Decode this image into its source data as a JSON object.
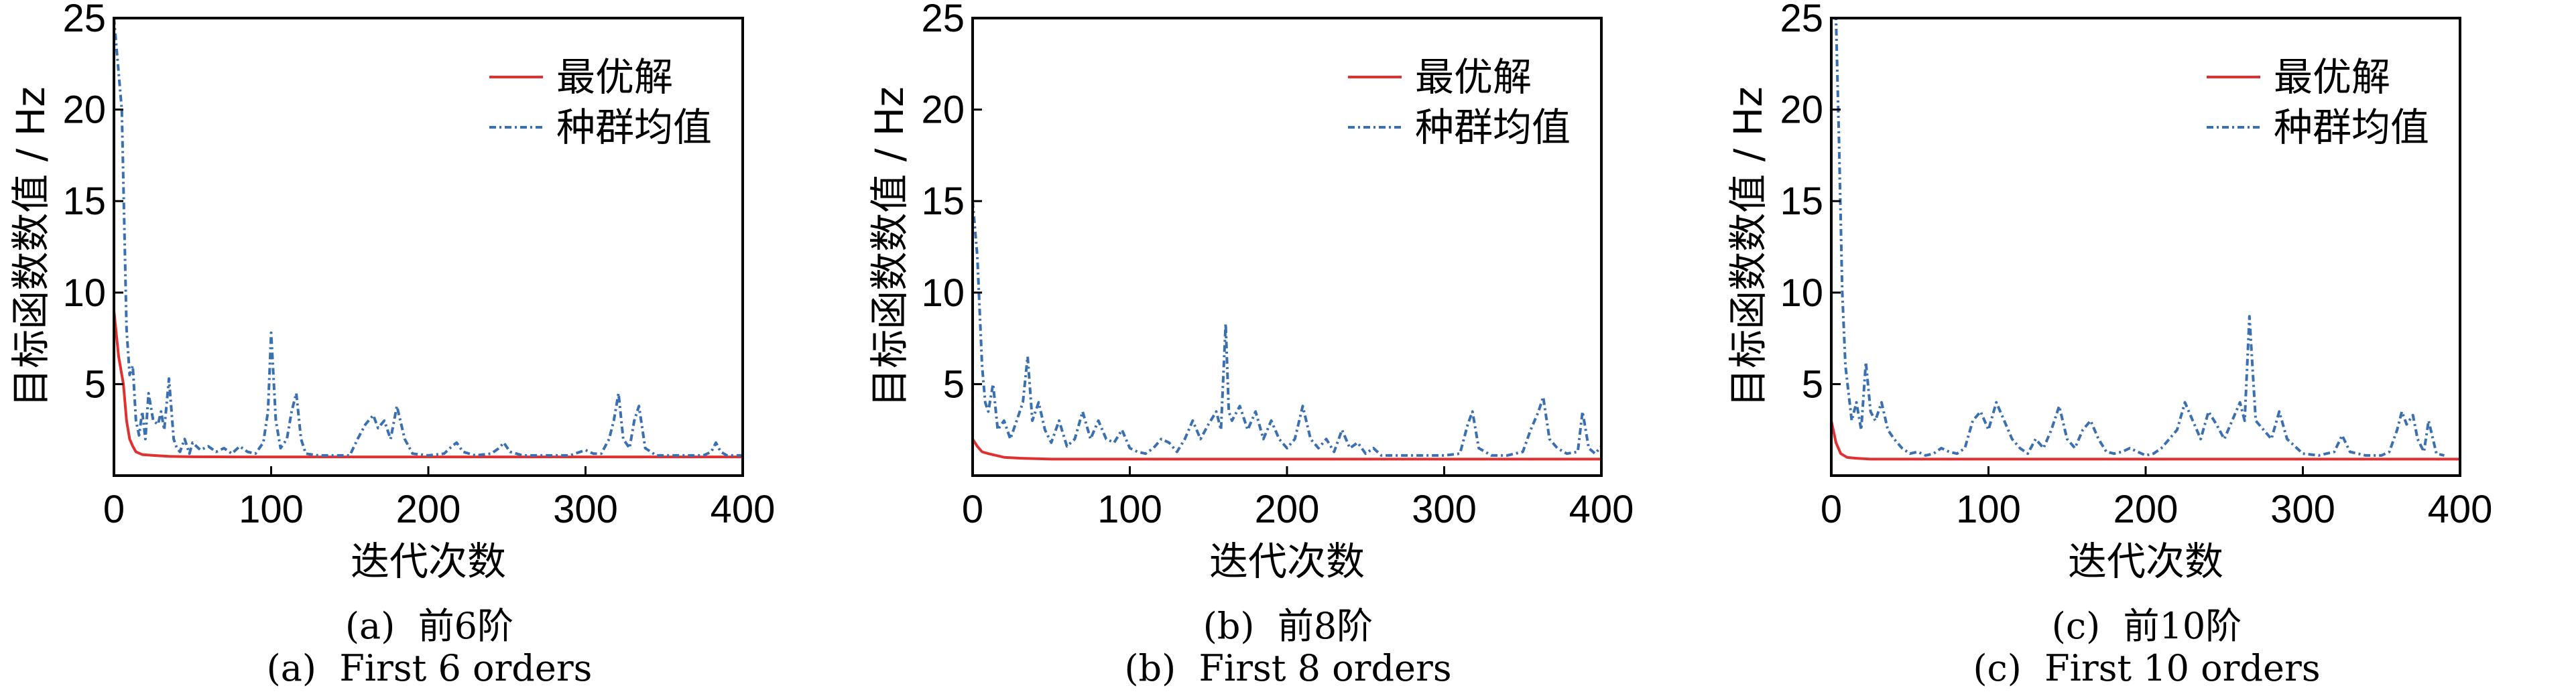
{
  "colors": {
    "best": "#e03030",
    "mean": "#3a6fb0",
    "axis": "#000000"
  },
  "chart_data": [
    {
      "type": "line",
      "panel_id": "a",
      "caption_cn": "(a)  前6阶",
      "caption_en": "(a)  First 6 orders",
      "xlabel": "迭代次数",
      "ylabel": "目标函数数值 / Hz",
      "xlim": [
        0,
        400
      ],
      "ylim": [
        0,
        25
      ],
      "xticks": [
        0,
        100,
        200,
        300,
        400
      ],
      "yticks": [
        5,
        10,
        15,
        20,
        25
      ],
      "legend": {
        "position": "top-right"
      },
      "series": [
        {
          "name": "最优解",
          "style": "solid",
          "x": [
            0,
            3,
            6,
            8,
            10,
            12,
            14,
            18,
            25,
            35,
            50,
            80,
            150,
            250,
            400
          ],
          "y": [
            9.0,
            6.5,
            5.0,
            3.0,
            2.0,
            1.6,
            1.3,
            1.15,
            1.1,
            1.05,
            1.03,
            1.02,
            1.02,
            1.02,
            1.02
          ]
        },
        {
          "name": "种群均值",
          "style": "dashdot",
          "x": [
            0,
            5,
            8,
            10,
            12,
            14,
            16,
            18,
            20,
            22,
            25,
            28,
            30,
            32,
            35,
            38,
            40,
            42,
            45,
            48,
            50,
            55,
            60,
            65,
            70,
            75,
            80,
            85,
            90,
            95,
            98,
            100,
            103,
            106,
            110,
            113,
            116,
            119,
            122,
            130,
            140,
            150,
            155,
            160,
            165,
            168,
            172,
            176,
            180,
            185,
            190,
            200,
            210,
            215,
            218,
            222,
            230,
            240,
            245,
            248,
            252,
            260,
            270,
            280,
            290,
            300,
            305,
            310,
            315,
            318,
            321,
            324,
            328,
            331,
            334,
            338,
            345,
            360,
            375,
            380,
            383,
            386,
            390,
            395,
            400
          ],
          "y": [
            25,
            20,
            8,
            5.5,
            6.0,
            3.0,
            2.2,
            3.5,
            2.0,
            4.5,
            3.0,
            2.8,
            3.5,
            2.5,
            5.3,
            2.0,
            1.5,
            1.3,
            2.0,
            1.2,
            1.8,
            1.4,
            1.6,
            1.3,
            1.5,
            1.2,
            1.6,
            1.3,
            1.2,
            1.8,
            3.5,
            7.8,
            3.0,
            1.5,
            2.0,
            3.5,
            4.5,
            2.0,
            1.2,
            1.1,
            1.1,
            1.1,
            2.0,
            2.8,
            3.3,
            2.6,
            3.0,
            2.0,
            3.8,
            2.0,
            1.2,
            1.1,
            1.2,
            1.6,
            1.8,
            1.3,
            1.1,
            1.2,
            1.5,
            1.8,
            1.3,
            1.1,
            1.1,
            1.1,
            1.1,
            1.4,
            1.2,
            1.2,
            2.0,
            3.0,
            4.5,
            2.0,
            1.5,
            3.0,
            3.8,
            1.5,
            1.1,
            1.1,
            1.1,
            1.3,
            1.8,
            1.3,
            1.1,
            1.1,
            1.1
          ]
        }
      ]
    },
    {
      "type": "line",
      "panel_id": "b",
      "caption_cn": "(b)  前8阶",
      "caption_en": "(b)  First 8 orders",
      "xlabel": "迭代次数",
      "ylabel": "目标函数数值 / Hz",
      "xlim": [
        0,
        400
      ],
      "ylim": [
        0,
        25
      ],
      "xticks": [
        0,
        100,
        200,
        300,
        400
      ],
      "yticks": [
        5,
        10,
        15,
        20,
        25
      ],
      "legend": {
        "position": "top-right"
      },
      "series": [
        {
          "name": "最优解",
          "style": "solid",
          "x": [
            0,
            3,
            6,
            10,
            15,
            20,
            30,
            50,
            100,
            200,
            300,
            400
          ],
          "y": [
            2.0,
            1.6,
            1.3,
            1.2,
            1.1,
            1.0,
            0.95,
            0.9,
            0.9,
            0.9,
            0.9,
            0.9
          ]
        },
        {
          "name": "种群均值",
          "style": "dashdot",
          "x": [
            0,
            3,
            6,
            8,
            10,
            13,
            16,
            20,
            24,
            28,
            32,
            35,
            38,
            42,
            46,
            50,
            55,
            60,
            65,
            70,
            75,
            80,
            85,
            90,
            95,
            100,
            105,
            110,
            115,
            120,
            125,
            130,
            135,
            140,
            145,
            150,
            155,
            158,
            161,
            163,
            165,
            170,
            175,
            180,
            185,
            190,
            195,
            200,
            205,
            210,
            215,
            220,
            225,
            230,
            235,
            240,
            245,
            250,
            255,
            260,
            270,
            280,
            290,
            300,
            310,
            315,
            318,
            322,
            330,
            340,
            350,
            355,
            360,
            363,
            367,
            372,
            378,
            385,
            388,
            392,
            396,
            400
          ],
          "y": [
            15,
            12,
            6.0,
            4.0,
            3.5,
            5.0,
            2.5,
            3.0,
            2.0,
            3.0,
            4.0,
            6.5,
            3.0,
            4.0,
            2.5,
            1.8,
            3.0,
            1.6,
            2.0,
            3.5,
            2.0,
            3.0,
            2.0,
            1.8,
            2.5,
            1.5,
            1.3,
            1.2,
            1.5,
            2.0,
            1.8,
            1.3,
            2.0,
            3.0,
            2.0,
            2.8,
            3.5,
            2.5,
            8.3,
            3.5,
            3.0,
            3.8,
            2.5,
            3.5,
            2.0,
            3.0,
            2.0,
            1.5,
            2.0,
            3.8,
            2.0,
            1.5,
            2.0,
            1.3,
            2.5,
            1.5,
            1.8,
            1.2,
            1.5,
            1.1,
            1.1,
            1.1,
            1.1,
            1.1,
            1.2,
            2.8,
            3.5,
            1.5,
            1.1,
            1.1,
            1.3,
            2.5,
            3.5,
            4.3,
            2.0,
            1.5,
            1.2,
            1.3,
            3.5,
            1.5,
            1.2,
            1.6
          ]
        }
      ]
    },
    {
      "type": "line",
      "panel_id": "c",
      "caption_cn": "(c)  前10阶",
      "caption_en": "(c)  First 10 orders",
      "xlabel": "迭代次数",
      "ylabel": "目标函数数值 / Hz",
      "xlim": [
        0,
        400
      ],
      "ylim": [
        0,
        25
      ],
      "xticks": [
        0,
        100,
        200,
        300,
        400
      ],
      "yticks": [
        5,
        10,
        15,
        20,
        25
      ],
      "legend": {
        "position": "top-right"
      },
      "series": [
        {
          "name": "最优解",
          "style": "solid",
          "x": [
            0,
            3,
            6,
            10,
            15,
            25,
            50,
            100,
            200,
            300,
            400
          ],
          "y": [
            3.0,
            1.8,
            1.2,
            1.0,
            0.95,
            0.9,
            0.9,
            0.9,
            0.9,
            0.9,
            0.9
          ]
        },
        {
          "name": "种群均值",
          "style": "dashdot",
          "x": [
            0,
            3,
            5,
            7,
            9,
            11,
            13,
            16,
            19,
            22,
            25,
            28,
            32,
            36,
            40,
            45,
            50,
            55,
            60,
            65,
            70,
            75,
            80,
            85,
            90,
            95,
            100,
            105,
            110,
            115,
            120,
            125,
            130,
            135,
            140,
            145,
            150,
            155,
            160,
            165,
            170,
            175,
            180,
            185,
            190,
            195,
            200,
            205,
            210,
            215,
            220,
            225,
            230,
            235,
            240,
            245,
            250,
            255,
            260,
            263,
            266,
            270,
            275,
            280,
            285,
            290,
            300,
            310,
            315,
            320,
            325,
            330,
            340,
            350,
            355,
            360,
            363,
            366,
            370,
            373,
            377,
            380,
            385,
            390
          ],
          "y": [
            25,
            25,
            18,
            10,
            6.0,
            4.5,
            3.0,
            4.0,
            2.5,
            6.2,
            3.5,
            3.0,
            4.0,
            2.5,
            2.0,
            1.5,
            1.2,
            1.3,
            1.1,
            1.2,
            1.5,
            1.3,
            1.2,
            1.5,
            3.0,
            3.5,
            2.5,
            4.0,
            3.0,
            2.0,
            1.5,
            1.2,
            2.0,
            1.5,
            2.5,
            3.8,
            2.0,
            1.5,
            2.5,
            3.0,
            2.0,
            1.3,
            1.2,
            1.3,
            1.5,
            1.3,
            1.1,
            1.2,
            1.5,
            2.0,
            2.5,
            4.0,
            3.0,
            2.0,
            3.5,
            2.8,
            2.0,
            3.0,
            4.0,
            3.0,
            8.7,
            3.0,
            2.5,
            2.0,
            3.5,
            2.0,
            1.2,
            1.1,
            1.2,
            1.3,
            2.2,
            1.3,
            1.1,
            1.1,
            1.3,
            2.5,
            3.5,
            2.8,
            3.3,
            2.0,
            1.3,
            3.0,
            1.2,
            1.1
          ]
        }
      ]
    }
  ]
}
